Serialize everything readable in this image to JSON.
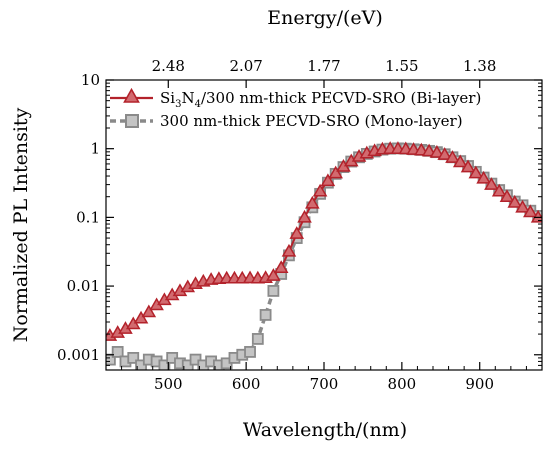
{
  "chart_data": {
    "type": "line",
    "x_axis": {
      "label": "Wavelength/(nm)",
      "range": [
        420,
        980
      ],
      "ticks": [
        500,
        600,
        700,
        800,
        900
      ],
      "minor_step": 20
    },
    "x2_axis": {
      "label": "Energy/(eV)",
      "position": "top",
      "tick_positions_nm": [
        500,
        600,
        700,
        800,
        900
      ],
      "tick_labels": [
        "2.48",
        "2.07",
        "1.77",
        "1.55",
        "1.38"
      ]
    },
    "y_axis": {
      "label": "Normalized PL Intensity",
      "scale": "log",
      "range": [
        0.0006,
        10
      ],
      "ticks": [
        0.001,
        0.01,
        0.1,
        1,
        10
      ],
      "tick_labels": [
        "0.001",
        "0.01",
        "0.1",
        "1",
        "10"
      ]
    },
    "legend": {
      "placement": "top-left"
    },
    "series": [
      {
        "name": "Si3N4/300 nm-thick PECVD-SRO (Bi-layer)",
        "name_parts": {
          "a": "Si",
          "sub1": "3",
          "b": "N",
          "sub2": "4",
          "c": "/300 nm-thick PECVD-SRO (Bi-layer)"
        },
        "color": "#b3222b",
        "marker": "triangle",
        "line": "solid",
        "x": [
          425,
          435,
          445,
          455,
          465,
          475,
          485,
          495,
          505,
          515,
          525,
          535,
          545,
          555,
          565,
          575,
          585,
          595,
          605,
          615,
          625,
          635,
          645,
          655,
          665,
          675,
          685,
          695,
          705,
          715,
          725,
          735,
          745,
          755,
          765,
          775,
          785,
          795,
          805,
          815,
          825,
          835,
          845,
          855,
          865,
          875,
          885,
          895,
          905,
          915,
          925,
          935,
          945,
          955,
          965,
          975
        ],
        "y": [
          0.0019,
          0.0021,
          0.0024,
          0.0028,
          0.0034,
          0.0042,
          0.0053,
          0.0063,
          0.0074,
          0.0085,
          0.0097,
          0.0108,
          0.0117,
          0.0124,
          0.0128,
          0.013,
          0.013,
          0.013,
          0.0131,
          0.013,
          0.0132,
          0.0142,
          0.0185,
          0.032,
          0.058,
          0.1,
          0.16,
          0.24,
          0.34,
          0.44,
          0.55,
          0.66,
          0.77,
          0.86,
          0.93,
          0.98,
          1.0,
          1.0,
          0.99,
          0.97,
          0.95,
          0.92,
          0.88,
          0.82,
          0.74,
          0.64,
          0.54,
          0.44,
          0.37,
          0.3,
          0.24,
          0.2,
          0.165,
          0.14,
          0.12,
          0.1
        ]
      },
      {
        "name": "300 nm-thick PECVD-SRO (Mono-layer)",
        "color": "#8a8a8a",
        "marker": "square",
        "line": "dashed",
        "x": [
          425,
          435,
          445,
          455,
          465,
          475,
          485,
          495,
          505,
          515,
          525,
          535,
          545,
          555,
          565,
          575,
          585,
          595,
          605,
          615,
          625,
          635,
          645,
          655,
          665,
          675,
          685,
          695,
          705,
          715,
          725,
          735,
          745,
          755,
          765,
          775,
          785,
          795,
          805,
          815,
          825,
          835,
          845,
          855,
          865,
          875,
          885,
          895,
          905,
          915,
          925,
          935,
          945,
          955,
          965,
          975
        ],
        "y": [
          0.00085,
          0.0011,
          0.0008,
          0.0009,
          0.0007,
          0.00085,
          0.0008,
          0.0007,
          0.0009,
          0.00075,
          0.0007,
          0.00085,
          0.0007,
          0.0008,
          0.0007,
          0.00075,
          0.0009,
          0.001,
          0.0011,
          0.0017,
          0.0038,
          0.0085,
          0.015,
          0.028,
          0.05,
          0.085,
          0.14,
          0.22,
          0.32,
          0.43,
          0.54,
          0.65,
          0.75,
          0.84,
          0.91,
          0.97,
          1.0,
          1.01,
          1.0,
          0.98,
          0.96,
          0.93,
          0.89,
          0.83,
          0.75,
          0.66,
          0.56,
          0.46,
          0.38,
          0.31,
          0.25,
          0.21,
          0.17,
          0.15,
          0.125,
          0.105
        ]
      }
    ]
  }
}
